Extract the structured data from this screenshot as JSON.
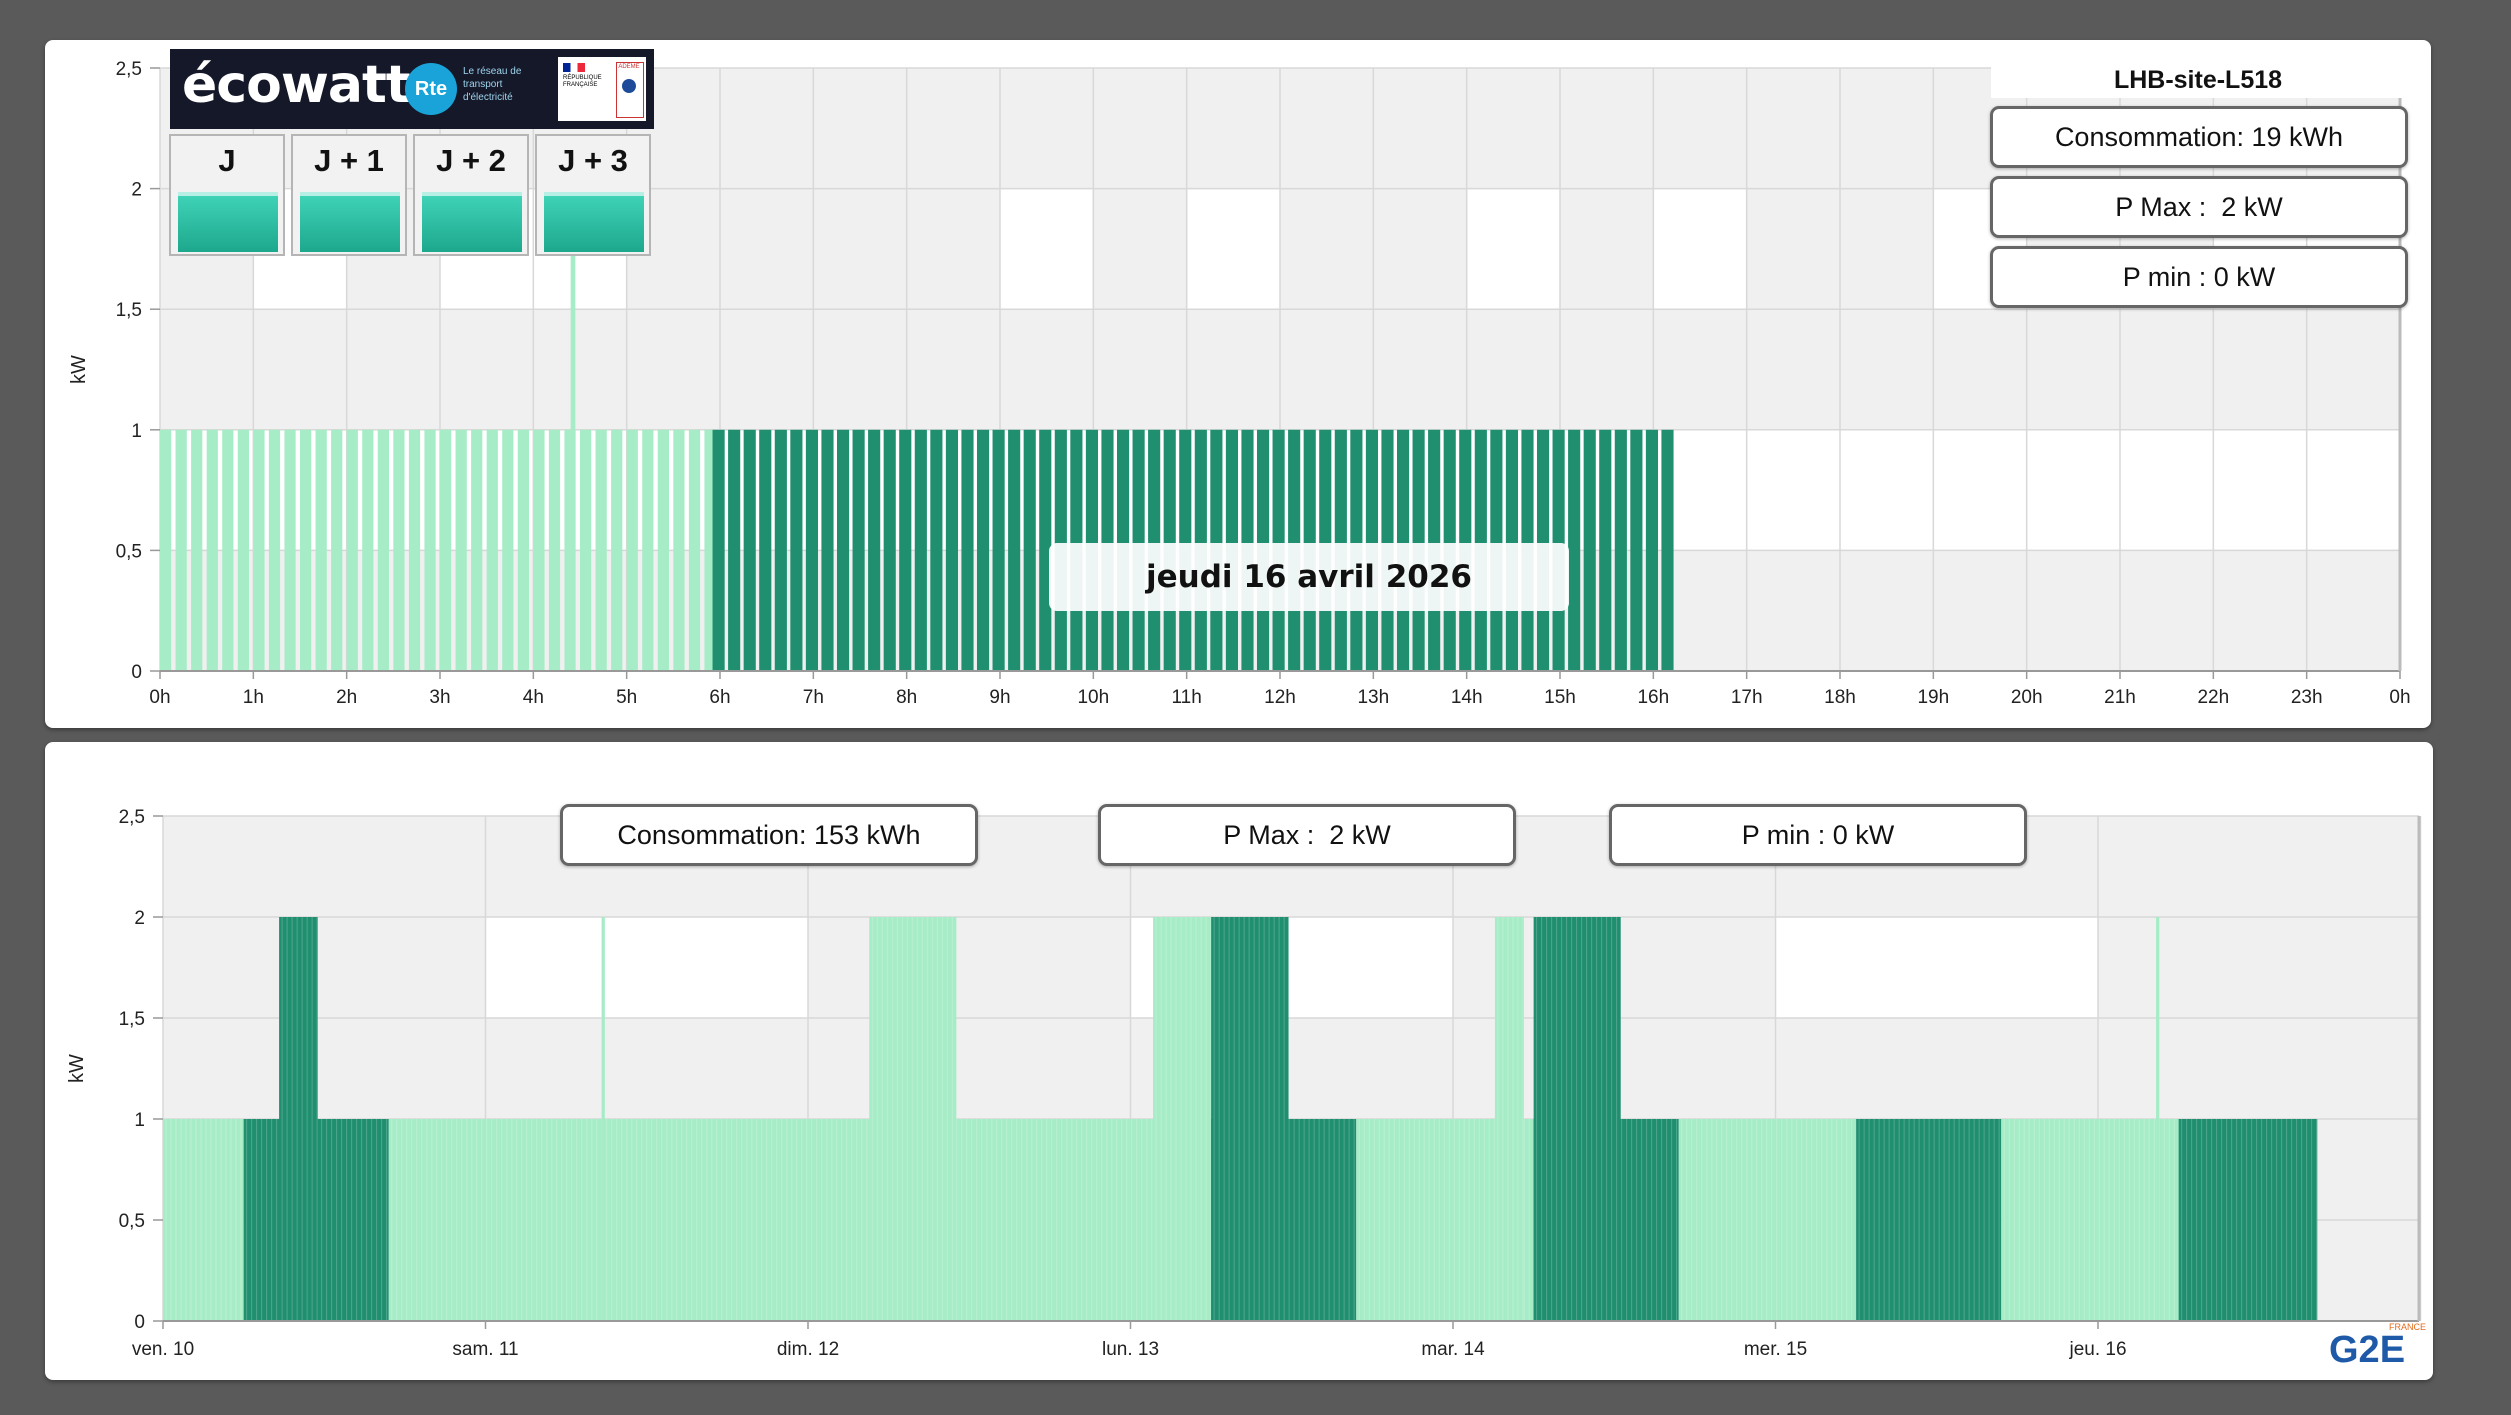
{
  "colors": {
    "light_series": "#a6ecc6",
    "dark_series": "#1f8f70",
    "band_grey": "#f0f0f0",
    "band_white": "#ffffff",
    "grid": "#d8d8d8",
    "ecowatt_green": "#2bbfa3"
  },
  "top": {
    "site_name": "LHB-site-L518",
    "consumption": "Consommation: 19 kWh",
    "pmax": "P Max :  2 kW",
    "pmin": "P min : 0 kW",
    "date_label": "jeudi 16 avril 2026",
    "ecowatt": {
      "brand": "écowatt",
      "rte_logo": "Rte",
      "rte_text": "Le réseau de transport d'électricité",
      "rf_text": "RÉPUBLIQUE FRANÇAISE",
      "ademe": "ADEME",
      "days": [
        {
          "label": "J",
          "signal": "green"
        },
        {
          "label": "J + 1",
          "signal": "green"
        },
        {
          "label": "J + 2",
          "signal": "green"
        },
        {
          "label": "J + 3",
          "signal": "green"
        }
      ]
    }
  },
  "bottom": {
    "consumption": "Consommation: 153 kWh",
    "pmax": "P Max :  2 kW",
    "pmin": "P min : 0 kW",
    "logo_text": "G2E",
    "logo_sub": "FRANCE"
  },
  "chart_data": [
    {
      "type": "bar",
      "ylabel": "kW",
      "ylim": [
        0,
        2.5
      ],
      "y_ticks": [
        "0",
        "0,5",
        "1",
        "1,5",
        "2",
        "2,5"
      ],
      "x_tick_labels": [
        "0h",
        "1h",
        "2h",
        "3h",
        "4h",
        "5h",
        "6h",
        "7h",
        "8h",
        "9h",
        "10h",
        "11h",
        "12h",
        "13h",
        "14h",
        "15h",
        "16h",
        "17h",
        "18h",
        "19h",
        "20h",
        "21h",
        "22h",
        "23h",
        "0h"
      ],
      "x_unit": "hour of day",
      "series": [
        {
          "color_role": "light",
          "ranges_h": [
            [
              0.0,
              5.92
            ]
          ],
          "value": 1
        },
        {
          "color_role": "light",
          "ranges_h": [
            [
              4.4,
              4.45
            ]
          ],
          "value": 1.8
        },
        {
          "color_role": "dark",
          "ranges_h": [
            [
              5.92,
              16.28
            ]
          ],
          "value": 1
        }
      ],
      "weekend_highlight": [
        [
          1,
          2
        ],
        [
          3,
          5
        ],
        [
          9,
          10
        ],
        [
          11,
          12
        ],
        [
          14,
          15
        ],
        [
          16,
          17
        ],
        [
          19,
          20
        ],
        [
          22,
          24
        ]
      ]
    },
    {
      "type": "bar",
      "ylabel": "kW",
      "ylim": [
        0,
        2.5
      ],
      "y_ticks": [
        "0",
        "0,5",
        "1",
        "1,5",
        "2",
        "2,5"
      ],
      "x_tick_labels": [
        "ven. 10",
        "sam. 11",
        "dim. 12",
        "lun. 13",
        "mar. 14",
        "mer. 15",
        "jeu. 16"
      ],
      "x_unit": "day",
      "segments": [
        {
          "color_role": "light",
          "from": 0.0,
          "to": 0.25,
          "value": 1
        },
        {
          "color_role": "dark",
          "from": 0.25,
          "to": 0.7,
          "value": 1
        },
        {
          "color_role": "dark",
          "from": 0.36,
          "to": 0.48,
          "value": 2
        },
        {
          "color_role": "light",
          "from": 0.7,
          "to": 3.25,
          "value": 1
        },
        {
          "color_role": "light",
          "from": 1.36,
          "to": 1.37,
          "value": 2
        },
        {
          "color_role": "light",
          "from": 2.19,
          "to": 2.46,
          "value": 2
        },
        {
          "color_role": "light",
          "from": 3.07,
          "to": 3.25,
          "value": 2
        },
        {
          "color_role": "dark",
          "from": 3.25,
          "to": 3.7,
          "value": 1
        },
        {
          "color_role": "dark",
          "from": 3.25,
          "to": 3.49,
          "value": 2
        },
        {
          "color_role": "light",
          "from": 3.7,
          "to": 4.25,
          "value": 1
        },
        {
          "color_role": "light",
          "from": 4.13,
          "to": 4.22,
          "value": 2
        },
        {
          "color_role": "dark",
          "from": 4.25,
          "to": 4.7,
          "value": 1
        },
        {
          "color_role": "dark",
          "from": 4.25,
          "to": 4.52,
          "value": 2
        },
        {
          "color_role": "light",
          "from": 4.7,
          "to": 5.25,
          "value": 1
        },
        {
          "color_role": "dark",
          "from": 5.25,
          "to": 5.7,
          "value": 1
        },
        {
          "color_role": "light",
          "from": 5.7,
          "to": 6.25,
          "value": 1
        },
        {
          "color_role": "light",
          "from": 6.18,
          "to": 6.19,
          "value": 2
        },
        {
          "color_role": "dark",
          "from": 6.25,
          "to": 6.68,
          "value": 1
        }
      ],
      "highlight_days": [
        [
          1,
          2
        ],
        [
          3,
          4
        ],
        [
          5,
          6
        ]
      ]
    }
  ]
}
